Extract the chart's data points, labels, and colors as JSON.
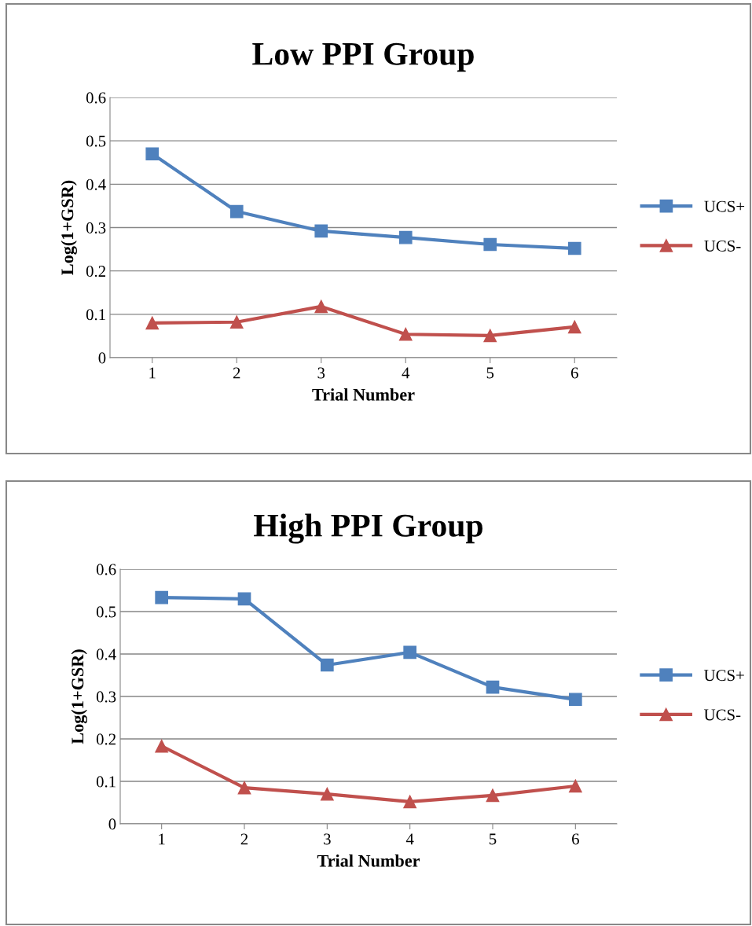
{
  "chart_data": [
    {
      "type": "line",
      "title": "Low PPI Group",
      "xlabel": "Trial Number",
      "ylabel": "Log(1+GSR)",
      "categories": [
        "1",
        "2",
        "3",
        "4",
        "5",
        "6"
      ],
      "ylim": [
        0,
        0.6
      ],
      "yticks": [
        0,
        0.1,
        0.2,
        0.3,
        0.4,
        0.5,
        0.6
      ],
      "grid": "y",
      "legend": "right",
      "series": [
        {
          "name": "UCS+",
          "color": "#4f81bd",
          "marker": "square",
          "values": [
            0.47,
            0.337,
            0.292,
            0.277,
            0.261,
            0.252
          ]
        },
        {
          "name": "UCS-",
          "color": "#c0504d",
          "marker": "triangle",
          "values": [
            0.08,
            0.082,
            0.118,
            0.054,
            0.051,
            0.071
          ]
        }
      ]
    },
    {
      "type": "line",
      "title": "High PPI Group",
      "xlabel": "Trial Number",
      "ylabel": "Log(1+GSR)",
      "categories": [
        "1",
        "2",
        "3",
        "4",
        "5",
        "6"
      ],
      "ylim": [
        0,
        0.6
      ],
      "yticks": [
        0,
        0.1,
        0.2,
        0.3,
        0.4,
        0.5,
        0.6
      ],
      "grid": "y",
      "legend": "right",
      "series": [
        {
          "name": "UCS+",
          "color": "#4f81bd",
          "marker": "square",
          "values": [
            0.533,
            0.53,
            0.374,
            0.404,
            0.322,
            0.293
          ]
        },
        {
          "name": "UCS-",
          "color": "#c0504d",
          "marker": "triangle",
          "values": [
            0.183,
            0.085,
            0.07,
            0.052,
            0.067,
            0.089
          ]
        }
      ]
    }
  ]
}
